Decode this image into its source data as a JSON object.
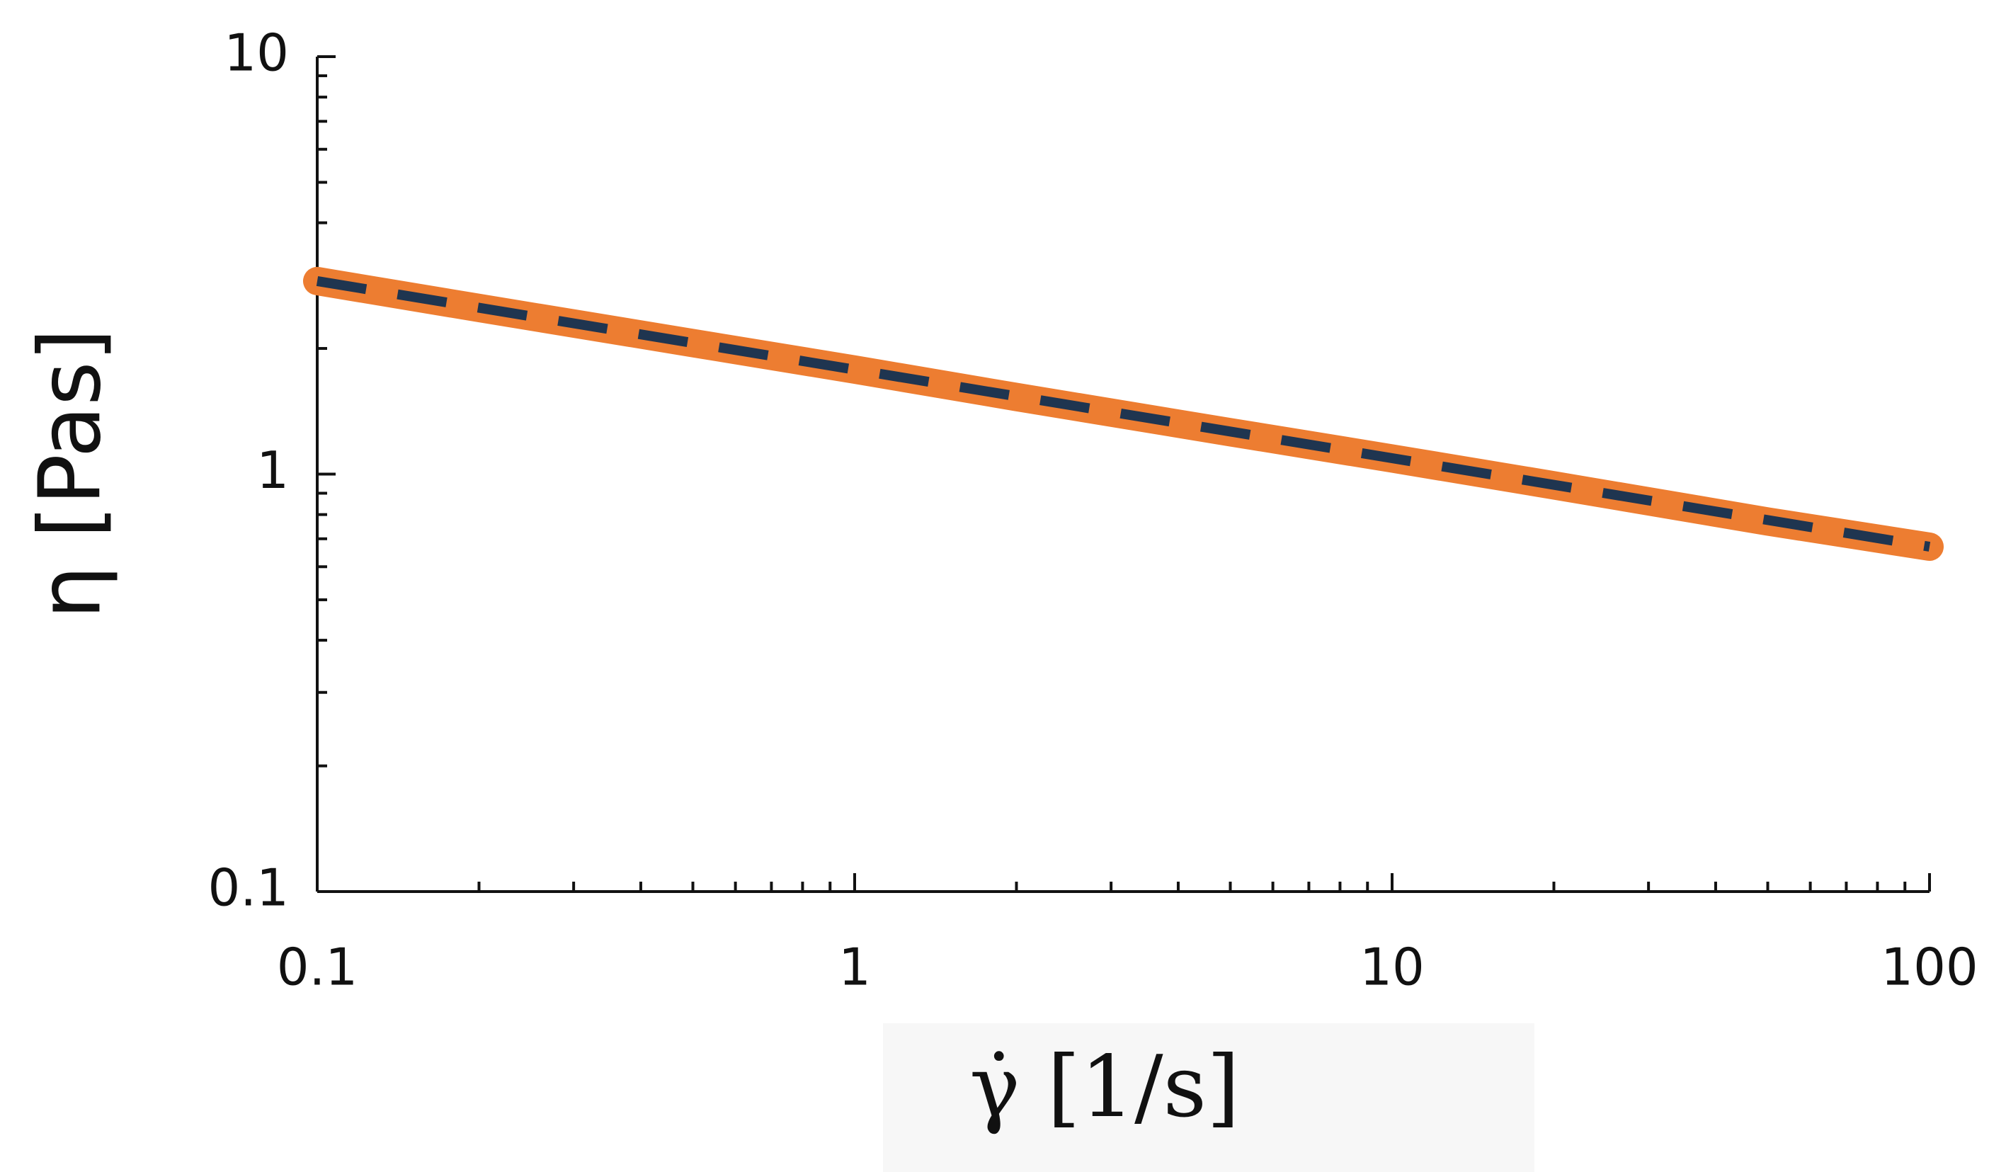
{
  "chart_data": {
    "type": "line",
    "x_label": "γ̇ [1/s]",
    "y_label": "η [Pas]",
    "xscale": "log",
    "yscale": "log",
    "minor_ticks": true,
    "xlim": [
      0.1,
      100
    ],
    "ylim": [
      0.1,
      10
    ],
    "xticks": [
      0.1,
      1,
      10,
      100
    ],
    "yticks": [
      0.1,
      1,
      10
    ],
    "series": [
      {
        "color": "#ed7d31",
        "style": "solid",
        "x": [
          0.1,
          0.2,
          0.5,
          1,
          2,
          5,
          10,
          20,
          50,
          100
        ],
        "values": [
          2.9,
          2.5,
          2.06,
          1.78,
          1.53,
          1.26,
          1.09,
          0.94,
          0.77,
          0.67
        ]
      },
      {
        "color": "#1f3550",
        "style": "dashed",
        "x": [
          0.1,
          100
        ],
        "values": [
          2.9,
          0.67
        ]
      }
    ]
  }
}
